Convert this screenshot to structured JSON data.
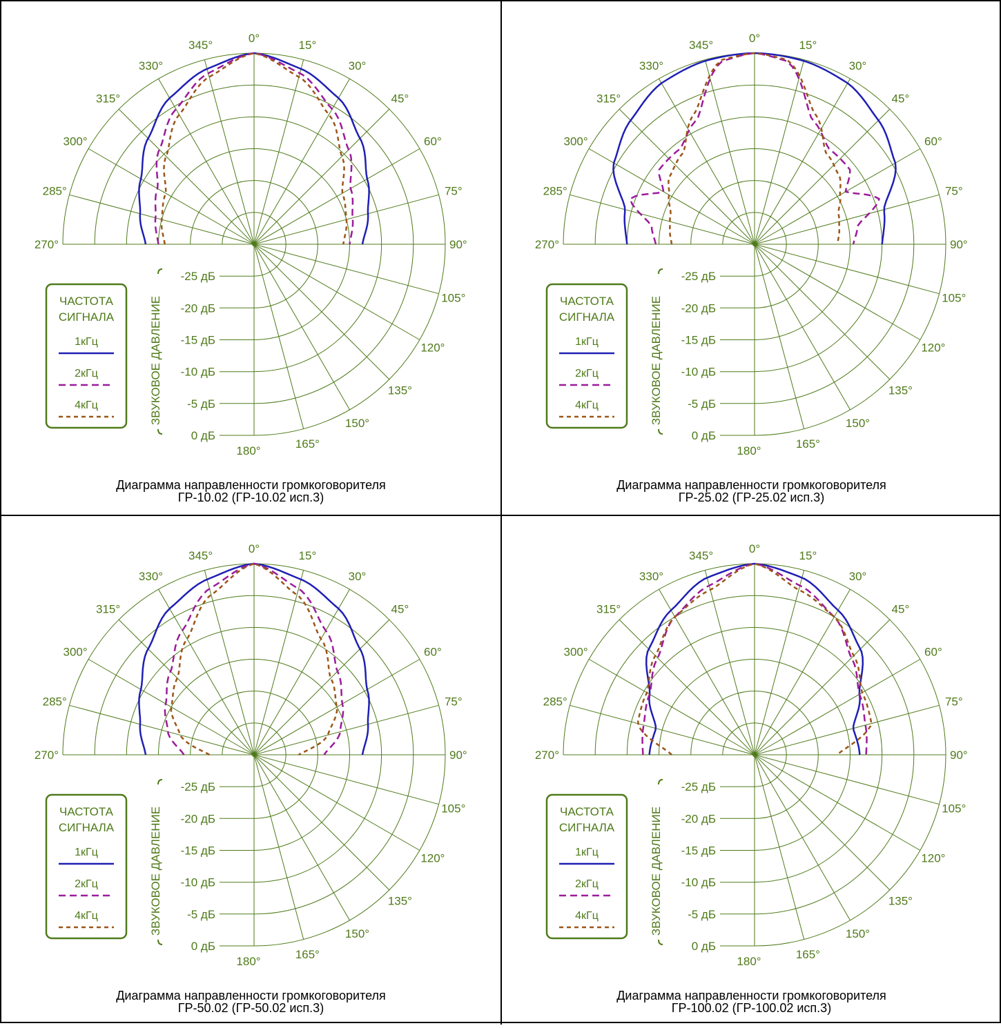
{
  "chart_data": [
    {
      "type": "polar-line",
      "caption_line1": "Диаграмма направленности громкоговорителя",
      "caption_line2": "ГР-10.02 (ГР-10.02 исп.3)",
      "legend_title_line1": "ЧАСТОТА",
      "legend_title_line2": "СИГНАЛА",
      "radial_axis_label": "ЗВУКОВОЕ ДАВЛЕНИЕ",
      "radial_ticks": [
        "0 дБ",
        "-5 дБ",
        "-10 дБ",
        "-15 дБ",
        "-20 дБ",
        "-25 дБ"
      ],
      "angle_ticks": [
        "0°",
        "15°",
        "30°",
        "45°",
        "60°",
        "75°",
        "90°",
        "105°",
        "120°",
        "135°",
        "150°",
        "165°",
        "180°",
        "285°",
        "300°",
        "315°",
        "330°",
        "345°",
        "270°"
      ],
      "rlim_db": [
        -30,
        0
      ],
      "series": [
        {
          "name": "1кГц",
          "color": "#1f1fb4",
          "dash": "solid",
          "angles": [
            0,
            15,
            30,
            45,
            60,
            75,
            90
          ],
          "values_db": [
            0,
            -1.5,
            -3.5,
            -6.5,
            -9.5,
            -11.5,
            -13
          ]
        },
        {
          "name": "2кГц",
          "color": "#9b1b9b",
          "dash": "dashed",
          "angles": [
            0,
            15,
            30,
            45,
            60,
            75,
            90
          ],
          "values_db": [
            0,
            -2.2,
            -5.5,
            -9,
            -12.5,
            -14,
            -15
          ]
        },
        {
          "name": "4кГц",
          "color": "#9b5518",
          "dash": "dotted",
          "angles": [
            0,
            15,
            30,
            45,
            60,
            75,
            90
          ],
          "values_db": [
            0,
            -2.8,
            -6.5,
            -10.5,
            -14,
            -15,
            -16
          ]
        }
      ]
    },
    {
      "type": "polar-line",
      "caption_line1": "Диаграмма направленности громкоговорителя",
      "caption_line2": "ГР-25.02 (ГР-25.02 исп.3)",
      "legend_title_line1": "ЧАСТОТА",
      "legend_title_line2": "СИГНАЛА",
      "radial_axis_label": "ЗВУКОВОЕ ДАВЛЕНИЕ",
      "radial_ticks": [
        "0 дБ",
        "-5 дБ",
        "-10 дБ",
        "-15 дБ",
        "-20 дБ",
        "-25 дБ"
      ],
      "angle_ticks": [
        "0°",
        "15°",
        "30°",
        "45°",
        "60°",
        "75°",
        "90°",
        "105°",
        "120°",
        "135°",
        "150°",
        "165°",
        "180°",
        "285°",
        "300°",
        "315°",
        "330°",
        "345°",
        "270°"
      ],
      "rlim_db": [
        -30,
        0
      ],
      "series": [
        {
          "name": "1кГц",
          "color": "#1f1fb4",
          "dash": "solid",
          "angles": [
            0,
            15,
            30,
            45,
            60,
            75,
            90
          ],
          "values_db": [
            0,
            -0.2,
            -0.8,
            -2.5,
            -4.5,
            -9,
            -10
          ]
        },
        {
          "name": "2кГц",
          "color": "#9b1b9b",
          "dash": "dashed",
          "angles": [
            0,
            10,
            25,
            38,
            52,
            60,
            70,
            80,
            90
          ],
          "values_db": [
            0,
            -0.8,
            -8.5,
            -11,
            -11,
            -13.5,
            -9.2,
            -13.6,
            -14.5
          ]
        },
        {
          "name": "4кГц",
          "color": "#9b5518",
          "dash": "dotted",
          "angles": [
            0,
            10,
            25,
            38,
            52,
            60,
            70,
            80,
            90
          ],
          "values_db": [
            0,
            -0.6,
            -7.5,
            -11.8,
            -13,
            -14.5,
            -16,
            -16.5,
            -17
          ]
        }
      ]
    },
    {
      "type": "polar-line",
      "caption_line1": "Диаграмма направленности громкоговорителя",
      "caption_line2": "ГР-50.02 (ГР-50.02 исп.3)",
      "legend_title_line1": "ЧАСТОТА",
      "legend_title_line2": "СИГНАЛА",
      "radial_axis_label": "ЗВУКОВОЕ ДАВЛЕНИЕ",
      "radial_ticks": [
        "0 дБ",
        "-5 дБ",
        "-10 дБ",
        "-15 дБ",
        "-20 дБ",
        "-25 дБ"
      ],
      "angle_ticks": [
        "0°",
        "15°",
        "30°",
        "45°",
        "60°",
        "75°",
        "90°",
        "105°",
        "120°",
        "135°",
        "150°",
        "165°",
        "180°",
        "285°",
        "300°",
        "315°",
        "330°",
        "345°",
        "270°"
      ],
      "rlim_db": [
        -30,
        0
      ],
      "series": [
        {
          "name": "1кГц",
          "color": "#1f1fb4",
          "dash": "solid",
          "angles": [
            0,
            15,
            30,
            45,
            60,
            75,
            90
          ],
          "values_db": [
            0,
            -1.5,
            -3.5,
            -6.5,
            -9.5,
            -11.5,
            -13
          ]
        },
        {
          "name": "2кГц",
          "color": "#9b1b9b",
          "dash": "dashed",
          "angles": [
            0,
            15,
            30,
            45,
            60,
            75,
            90
          ],
          "values_db": [
            0,
            -3,
            -7.5,
            -11.5,
            -14,
            -16,
            -19
          ]
        },
        {
          "name": "4кГц",
          "color": "#9b5518",
          "dash": "dotted",
          "angles": [
            0,
            15,
            30,
            45,
            60,
            75,
            90
          ],
          "values_db": [
            0,
            -4,
            -9,
            -13,
            -15,
            -18,
            -23
          ]
        }
      ]
    },
    {
      "type": "polar-line",
      "caption_line1": "Диаграмма направленности громкоговорителя",
      "caption_line2": "ГР-100.02 (ГР-100.02 исп.3)",
      "legend_title_line1": "ЧАСТОТА",
      "legend_title_line2": "СИГНАЛА",
      "radial_axis_label": "ЗВУКОВОЕ ДАВЛЕНИЕ",
      "radial_ticks": [
        "0 дБ",
        "-5 дБ",
        "-10 дБ",
        "-15 дБ",
        "-20 дБ",
        "-25 дБ"
      ],
      "angle_ticks": [
        "0°",
        "15°",
        "30°",
        "45°",
        "60°",
        "75°",
        "90°",
        "105°",
        "120°",
        "135°",
        "150°",
        "165°",
        "180°",
        "285°",
        "300°",
        "315°",
        "330°",
        "345°",
        "270°"
      ],
      "rlim_db": [
        -30,
        0
      ],
      "series": [
        {
          "name": "1кГц",
          "color": "#1f1fb4",
          "dash": "solid",
          "angles": [
            0,
            15,
            30,
            45,
            60,
            75,
            90
          ],
          "values_db": [
            0,
            -1.2,
            -3.8,
            -6.5,
            -11,
            -14,
            -13.5
          ]
        },
        {
          "name": "2кГц",
          "color": "#9b1b9b",
          "dash": "dashed",
          "angles": [
            0,
            15,
            30,
            45,
            60,
            75,
            90
          ],
          "values_db": [
            0,
            -2.5,
            -5,
            -8.5,
            -11,
            -12,
            -12.5
          ]
        },
        {
          "name": "4кГц",
          "color": "#9b5518",
          "dash": "dotted",
          "angles": [
            0,
            15,
            30,
            45,
            60,
            75,
            90
          ],
          "values_db": [
            0,
            -3.2,
            -5,
            -8,
            -10.5,
            -11,
            -17
          ]
        }
      ]
    }
  ]
}
